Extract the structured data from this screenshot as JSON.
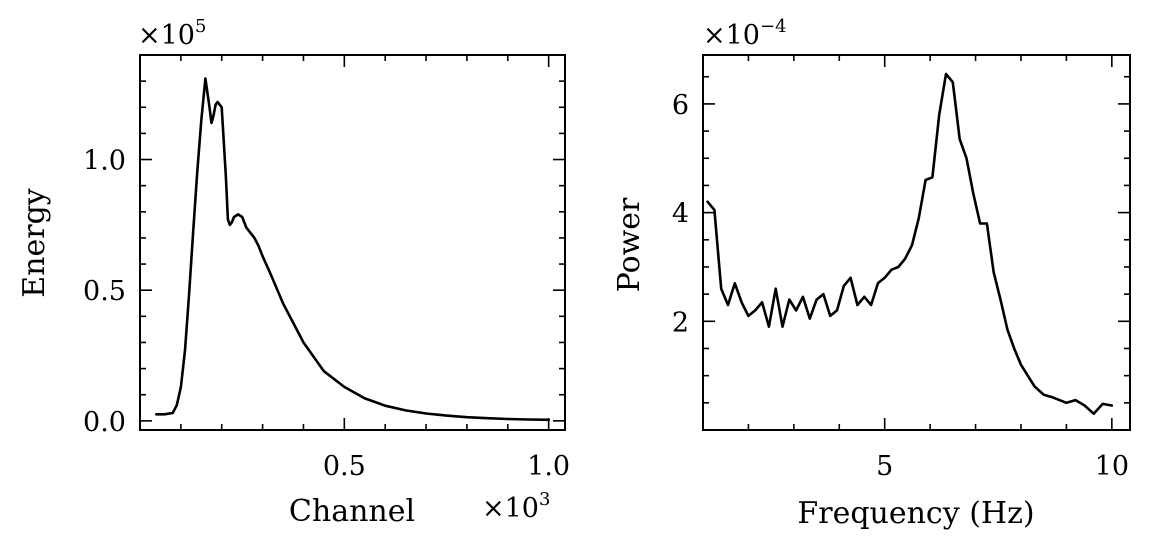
{
  "chart_data": [
    {
      "type": "line",
      "xlabel": "Channel",
      "ylabel": "Energy",
      "x_multiplier": "×10",
      "x_multiplier_exp": "3",
      "y_multiplier": "×10",
      "y_multiplier_exp": "5",
      "xlim": [
        0.0,
        1.04
      ],
      "ylim": [
        -0.035,
        1.4
      ],
      "x_ticks": [
        0.5,
        1.0
      ],
      "x_tick_labels": [
        "0.5",
        "1.0"
      ],
      "y_ticks": [
        0.0,
        0.5,
        1.0
      ],
      "y_tick_labels": [
        "0.0",
        "0.5",
        "1.0"
      ],
      "grid": false,
      "series": [
        {
          "x": [
            0.04,
            0.06,
            0.08,
            0.09,
            0.1,
            0.11,
            0.12,
            0.13,
            0.14,
            0.15,
            0.16,
            0.17,
            0.175,
            0.18,
            0.185,
            0.19,
            0.2,
            0.21,
            0.215,
            0.22,
            0.225,
            0.23,
            0.24,
            0.25,
            0.26,
            0.27,
            0.28,
            0.29,
            0.3,
            0.32,
            0.35,
            0.4,
            0.45,
            0.5,
            0.55,
            0.6,
            0.65,
            0.7,
            0.75,
            0.8,
            0.85,
            0.9,
            0.95,
            1.0
          ],
          "y": [
            0.025,
            0.025,
            0.03,
            0.06,
            0.13,
            0.27,
            0.48,
            0.72,
            0.95,
            1.15,
            1.31,
            1.2,
            1.14,
            1.17,
            1.21,
            1.22,
            1.2,
            0.94,
            0.77,
            0.75,
            0.76,
            0.78,
            0.79,
            0.78,
            0.74,
            0.72,
            0.7,
            0.67,
            0.63,
            0.56,
            0.45,
            0.3,
            0.19,
            0.13,
            0.086,
            0.058,
            0.04,
            0.028,
            0.02,
            0.014,
            0.01,
            0.007,
            0.005,
            0.004
          ]
        }
      ]
    },
    {
      "type": "line",
      "xlabel": "Frequency (Hz)",
      "ylabel": "Power",
      "y_multiplier": "×10",
      "y_multiplier_exp": "−4",
      "xlim": [
        1.0,
        10.4
      ],
      "ylim": [
        0.0,
        6.9
      ],
      "x_ticks": [
        5,
        10
      ],
      "x_tick_labels": [
        "5",
        "10"
      ],
      "y_ticks": [
        2,
        4,
        6
      ],
      "y_tick_labels": [
        "2",
        "4",
        "6"
      ],
      "grid": false,
      "series": [
        {
          "x": [
            1.1,
            1.25,
            1.4,
            1.55,
            1.7,
            1.85,
            2.0,
            2.15,
            2.3,
            2.45,
            2.6,
            2.75,
            2.9,
            3.05,
            3.2,
            3.35,
            3.5,
            3.65,
            3.8,
            3.95,
            4.1,
            4.25,
            4.4,
            4.55,
            4.7,
            4.85,
            5.0,
            5.15,
            5.3,
            5.45,
            5.6,
            5.75,
            5.9,
            6.05,
            6.2,
            6.35,
            6.5,
            6.65,
            6.8,
            6.95,
            7.1,
            7.25,
            7.4,
            7.55,
            7.7,
            7.85,
            8.0,
            8.15,
            8.3,
            8.5,
            8.7,
            9.0,
            9.2,
            9.4,
            9.6,
            9.8,
            10.0
          ],
          "y": [
            4.2,
            4.05,
            2.6,
            2.3,
            2.7,
            2.35,
            2.1,
            2.2,
            2.35,
            1.9,
            2.6,
            1.9,
            2.4,
            2.2,
            2.45,
            2.05,
            2.4,
            2.5,
            2.1,
            2.2,
            2.65,
            2.8,
            2.3,
            2.45,
            2.3,
            2.7,
            2.8,
            2.95,
            3.0,
            3.15,
            3.4,
            3.9,
            4.6,
            4.65,
            5.8,
            6.55,
            6.4,
            5.35,
            5.0,
            4.35,
            3.8,
            3.8,
            2.9,
            2.4,
            1.85,
            1.5,
            1.2,
            1.0,
            0.8,
            0.65,
            0.6,
            0.5,
            0.55,
            0.45,
            0.3,
            0.48,
            0.45
          ]
        }
      ]
    }
  ]
}
